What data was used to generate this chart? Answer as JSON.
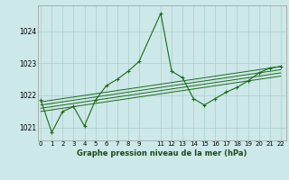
{
  "background_color": "#cde8e8",
  "grid_color": "#aacccc",
  "line_color": "#1a6b1a",
  "xlabel": "Graphe pression niveau de la mer (hPa)",
  "ylim": [
    1020.6,
    1024.8
  ],
  "yticks": [
    1021,
    1022,
    1023,
    1024
  ],
  "xlim": [
    -0.3,
    22.5
  ],
  "xticks": [
    0,
    1,
    2,
    3,
    4,
    5,
    6,
    7,
    8,
    9,
    11,
    12,
    13,
    14,
    15,
    16,
    17,
    18,
    19,
    20,
    21,
    22
  ],
  "series": [
    [
      0,
      1021.85
    ],
    [
      1,
      1020.85
    ],
    [
      2,
      1021.5
    ],
    [
      3,
      1021.65
    ],
    [
      4,
      1021.05
    ],
    [
      5,
      1021.85
    ],
    [
      6,
      1022.3
    ],
    [
      7,
      1022.5
    ],
    [
      8,
      1022.75
    ],
    [
      9,
      1023.05
    ],
    [
      11,
      1024.55
    ],
    [
      12,
      1022.75
    ],
    [
      13,
      1022.55
    ],
    [
      14,
      1021.9
    ],
    [
      15,
      1021.7
    ],
    [
      16,
      1021.9
    ],
    [
      17,
      1022.1
    ],
    [
      18,
      1022.25
    ],
    [
      19,
      1022.45
    ],
    [
      20,
      1022.7
    ],
    [
      21,
      1022.85
    ],
    [
      22,
      1022.9
    ]
  ],
  "trend_lines": [
    [
      [
        0,
        22
      ],
      [
        1021.8,
        1022.9
      ]
    ],
    [
      [
        0,
        22
      ],
      [
        1021.7,
        1022.8
      ]
    ],
    [
      [
        0,
        22
      ],
      [
        1021.6,
        1022.7
      ]
    ],
    [
      [
        0,
        22
      ],
      [
        1021.5,
        1022.6
      ]
    ]
  ]
}
